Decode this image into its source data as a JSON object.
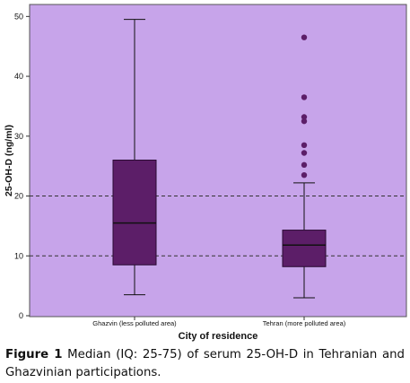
{
  "colors": {
    "plot_background": "#c7a4ea",
    "box_fill": "#5c1e68",
    "box_stroke": "#2a0a33",
    "outlier": "#5c1e68",
    "reference_line": "#333333",
    "text": "#111111"
  },
  "chart_data": {
    "type": "box",
    "title": "",
    "xlabel": "City of residence",
    "ylabel": "25-OH-D (ng/ml)",
    "ylim": [
      0,
      52
    ],
    "yticks": [
      0,
      10,
      20,
      30,
      40,
      50
    ],
    "grid": false,
    "reference_lines": [
      10,
      20
    ],
    "reference_line_style": "dashed",
    "categories": [
      "Ghazvin (less polluted area)",
      "Tehran (more polluted area)"
    ],
    "boxes": [
      {
        "category": "Ghazvin (less polluted area)",
        "whisker_low": 3.5,
        "q1": 8.5,
        "median": 15.5,
        "q3": 26,
        "whisker_high": 49.5,
        "outliers": []
      },
      {
        "category": "Tehran (more polluted area)",
        "whisker_low": 3,
        "q1": 8.2,
        "median": 11.8,
        "q3": 14.3,
        "whisker_high": 22.2,
        "outliers": [
          23.5,
          25.2,
          27.2,
          28.5,
          32.5,
          33.2,
          36.5,
          46.5
        ]
      }
    ]
  },
  "caption": {
    "label": "Figure 1",
    "text": " Median (IQ: 25-75) of serum 25-OH-D in Tehranian and Ghazvinian participations."
  }
}
